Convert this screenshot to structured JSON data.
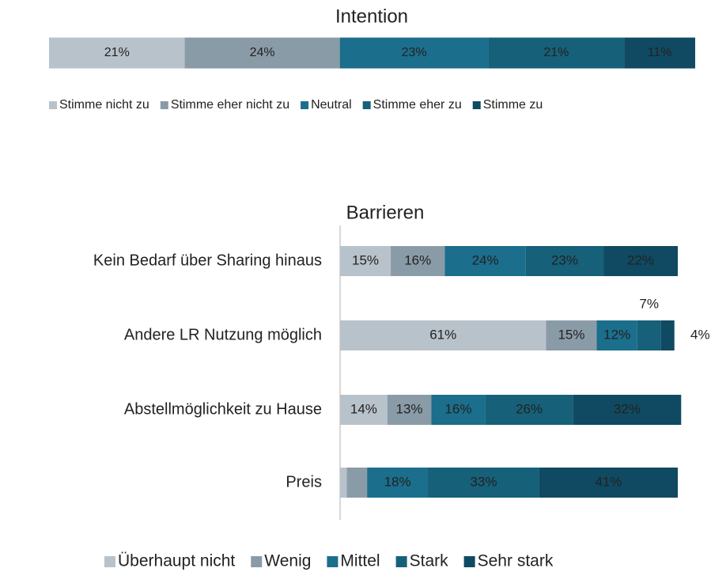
{
  "chart_data": [
    {
      "type": "stacked-barh",
      "title": "Intention",
      "categories": [
        null
      ],
      "series": [
        {
          "name": "Stimme nicht zu",
          "color": "#b8c2ca",
          "values": [
            21
          ],
          "value_labels": [
            "21%"
          ]
        },
        {
          "name": "Stimme eher nicht zu",
          "color": "#8a9ba8",
          "values": [
            24
          ],
          "value_labels": [
            "24%"
          ]
        },
        {
          "name": "Neutral",
          "color": "#1b6e8c",
          "values": [
            23
          ],
          "value_labels": [
            "23%"
          ]
        },
        {
          "name": "Stimme eher zu",
          "color": "#166079",
          "values": [
            21
          ],
          "value_labels": [
            "21%"
          ]
        },
        {
          "name": "Stimme zu",
          "color": "#0f4a62",
          "values": [
            11
          ],
          "value_labels": [
            "11%"
          ]
        }
      ],
      "xlim": [
        0,
        100
      ]
    },
    {
      "type": "stacked-barh",
      "title": "Barrieren",
      "categories": [
        "Kein Bedarf über Sharing hinaus",
        "Andere LR Nutzung möglich",
        "Abstellmöglichkeit zu Hause",
        "Preis"
      ],
      "series": [
        {
          "name": "Überhaupt nicht",
          "color": "#b8c2ca",
          "values": [
            15,
            61,
            14,
            2
          ],
          "value_labels": [
            "15%",
            "61%",
            "14%",
            null
          ]
        },
        {
          "name": "Wenig",
          "color": "#8a9ba8",
          "values": [
            16,
            15,
            13,
            6
          ],
          "value_labels": [
            "16%",
            "15%",
            "13%",
            null
          ]
        },
        {
          "name": "Mittel",
          "color": "#1b6e8c",
          "values": [
            24,
            12,
            16,
            18
          ],
          "value_labels": [
            "24%",
            "12%",
            "16%",
            "18%"
          ]
        },
        {
          "name": "Stark",
          "color": "#166079",
          "values": [
            23,
            7,
            26,
            33
          ],
          "value_labels": [
            "23%",
            "7%",
            "26%",
            "33%"
          ]
        },
        {
          "name": "Sehr stark",
          "color": "#0f4a62",
          "values": [
            22,
            4,
            32,
            41
          ],
          "value_labels": [
            "22%",
            "4%",
            "32%",
            "41%"
          ]
        }
      ],
      "xlim": [
        0,
        100
      ]
    }
  ]
}
